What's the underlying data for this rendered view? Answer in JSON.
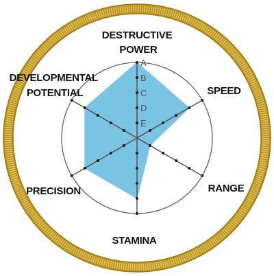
{
  "chart_data": {
    "type": "radar",
    "axes": [
      [
        "DESTRUCTIVE",
        "POWER"
      ],
      [
        "SPEED"
      ],
      [
        "RANGE"
      ],
      [
        "STAMINA"
      ],
      [
        "PRECISION"
      ],
      [
        "DEVELOPMENTAL",
        "POTENTIAL"
      ]
    ],
    "grades": [
      "A",
      "B",
      "C",
      "D",
      "E"
    ],
    "values": [
      "A",
      "B",
      "E",
      "B",
      "B",
      "B"
    ],
    "value_scale": {
      "A": 5,
      "B": 4,
      "C": 3,
      "D": 2,
      "E": 1
    },
    "fill_color": "#79c4e3",
    "ring_color": "#c9a227"
  }
}
